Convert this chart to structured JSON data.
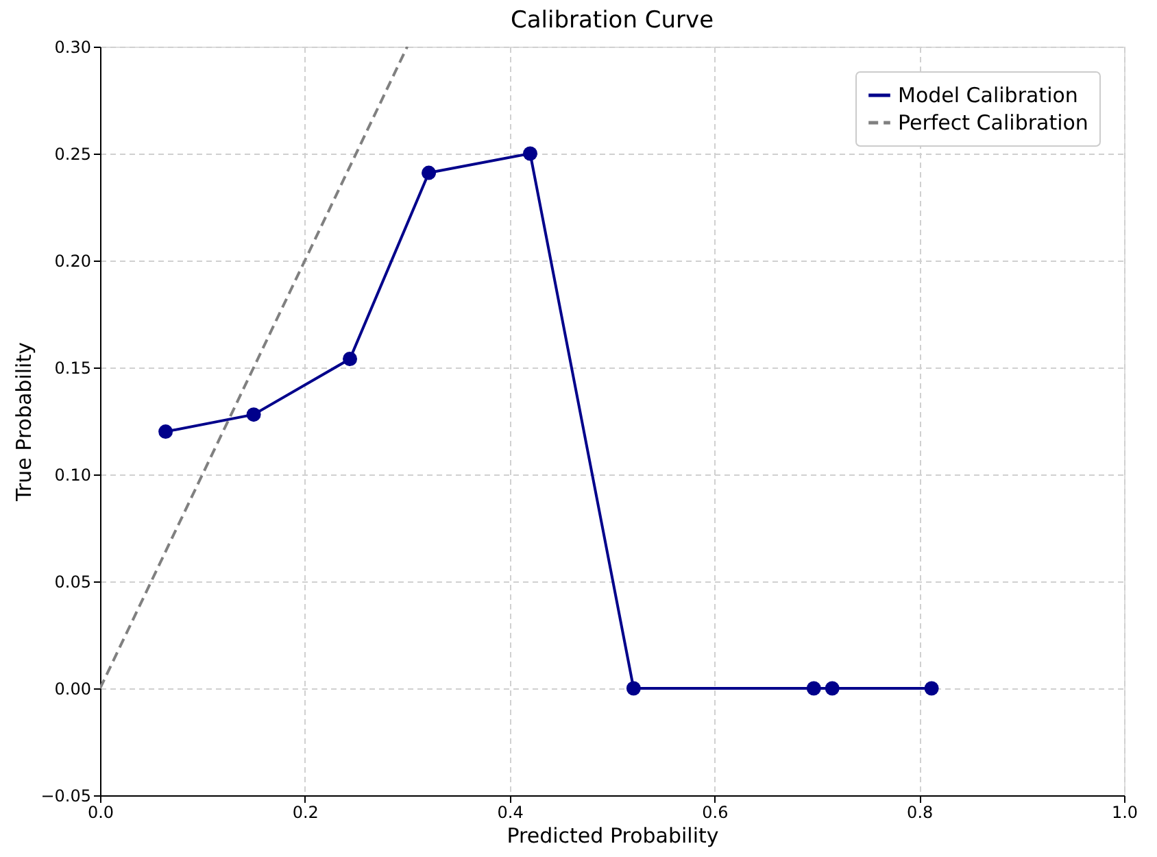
{
  "chart_data": {
    "type": "line",
    "title": "Calibration Curve",
    "xlabel": "Predicted Probability",
    "ylabel": "True Probability",
    "series": [
      {
        "name": "Model Calibration",
        "color": "#00008b",
        "marker": "circle",
        "line_style": "solid",
        "x": [
          0.064,
          0.15,
          0.244,
          0.321,
          0.42,
          0.521,
          0.697,
          0.715,
          0.812
        ],
        "values": [
          0.12,
          0.128,
          0.154,
          0.241,
          0.25,
          0.0,
          0.0,
          0.0,
          0.0
        ]
      },
      {
        "name": "Perfect Calibration",
        "color": "#808080",
        "marker": "none",
        "line_style": "dashed",
        "x": [
          0.0,
          0.3
        ],
        "values": [
          0.0,
          0.3
        ]
      }
    ],
    "xlim": [
      0.0,
      1.0
    ],
    "ylim": [
      -0.05,
      0.3
    ],
    "xticks": [
      {
        "value": 0,
        "label": "0.0"
      },
      {
        "value": 0.2,
        "label": "0.2"
      },
      {
        "value": 0.4,
        "label": "0.4"
      },
      {
        "value": 0.6,
        "label": "0.6"
      },
      {
        "value": 0.8,
        "label": "0.8"
      },
      {
        "value": 1,
        "label": "1.0"
      }
    ],
    "yticks": [
      {
        "value": -0.05,
        "label": "−0.05"
      },
      {
        "value": 0,
        "label": "0.00"
      },
      {
        "value": 0.05,
        "label": "0.05"
      },
      {
        "value": 0.1,
        "label": "0.10"
      },
      {
        "value": 0.15,
        "label": "0.15"
      },
      {
        "value": 0.2,
        "label": "0.20"
      },
      {
        "value": 0.25,
        "label": "0.25"
      },
      {
        "value": 0.3,
        "label": "0.30"
      }
    ],
    "grid": true,
    "legend": "top right"
  }
}
